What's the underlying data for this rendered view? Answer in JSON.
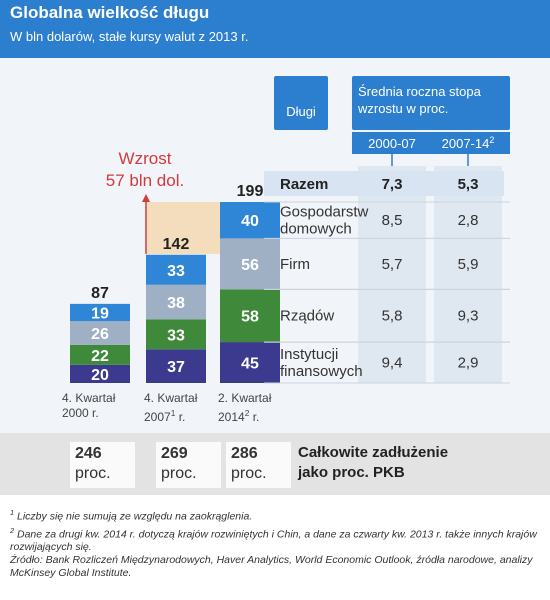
{
  "header": {
    "title": "Globalna wielkość długu",
    "subtitle": "W bln dolarów, stałe kursy walut z 2013 r."
  },
  "colors": {
    "header": "#2c7fcf",
    "razem_row": "#d8e4f2",
    "growth_arrow": "#d13b3b",
    "highlight": "#f4dcb9"
  },
  "chart_data": {
    "type": "bar",
    "stacked": true,
    "categories": [
      "4. Kwartał 2000 r.",
      "4. Kwartał 2007 r.",
      "2. Kwartał 2014 r."
    ],
    "category_label_lines": [
      [
        "4. Kwartał",
        "2000 r."
      ],
      [
        "4. Kwartał",
        "2007",
        "1",
        " r."
      ],
      [
        "2. Kwartał",
        "2014",
        "2",
        " r."
      ]
    ],
    "totals": [
      87,
      142,
      199
    ],
    "series": [
      {
        "name": "Instytucji finansowych",
        "color": "#3b3a8f",
        "values": [
          20,
          37,
          45
        ]
      },
      {
        "name": "Rządów",
        "color": "#3f8a3a",
        "values": [
          22,
          33,
          58
        ]
      },
      {
        "name": "Firm",
        "color": "#9fb0c4",
        "values": [
          26,
          38,
          56
        ]
      },
      {
        "name": "Gospodarstw domowych",
        "color": "#2f86d6",
        "values": [
          19,
          33,
          40
        ]
      }
    ],
    "annotation": {
      "line1": "Wzrost",
      "line2": "57 bln dol."
    },
    "table": {
      "header_left": "Długi",
      "header_group": [
        "Średnia roczna stopa",
        "wzrostu w proc."
      ],
      "columns": [
        "2000-07",
        "2007-14"
      ],
      "column_sup": [
        "",
        "2"
      ],
      "total_row": {
        "label": "Razem",
        "values": [
          "7,3",
          "5,3"
        ]
      },
      "rows": [
        {
          "label_lines": [
            "Gospodarstw",
            "domowych"
          ],
          "values": [
            "8,5",
            "2,8"
          ]
        },
        {
          "label_lines": [
            "Firm"
          ],
          "values": [
            "5,7",
            "5,9"
          ]
        },
        {
          "label_lines": [
            "Rządów"
          ],
          "values": [
            "5,8",
            "9,3"
          ]
        },
        {
          "label_lines": [
            "Instytucji",
            "finansowych"
          ],
          "values": [
            "9,4",
            "2,9"
          ]
        }
      ]
    }
  },
  "gdp_ratio": {
    "values": [
      "246",
      "269",
      "286"
    ],
    "unit": "proc.",
    "label_line1": "Całkowite zadłużenie",
    "label_line2": "jako proc. PKB"
  },
  "footnotes": {
    "note1_marker": "1",
    "note1_text": " Liczby się nie sumują ze względu na zaokrąglenia.",
    "note2_marker": "2",
    "note2_text": " Dane za drugi kw. 2014 r. dotyczą krajów rozwiniętych i Chin, a dane za czwarty kw. 2013 r. także innych krajów rozwijających się.",
    "source": "Źródło: Bank Rozliczeń Międzynarodowych, Haver Analytics, World Economic Outlook, źródła narodowe, analizy McKinsey Global Institute."
  }
}
